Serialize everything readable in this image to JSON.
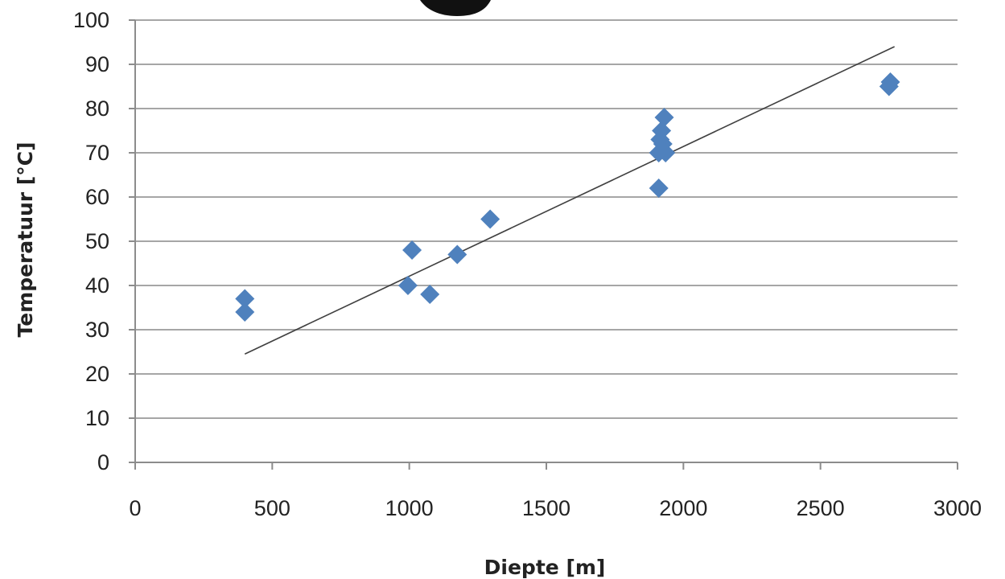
{
  "chart_data": {
    "type": "scatter",
    "title": "",
    "xlabel": "Diepte [m]",
    "ylabel": "Temperatuur [°C]",
    "xlim": [
      0,
      3000
    ],
    "ylim": [
      0,
      100
    ],
    "x_ticks": [
      0,
      500,
      1000,
      1500,
      2000,
      2500,
      3000
    ],
    "y_ticks": [
      0,
      10,
      20,
      30,
      40,
      50,
      60,
      70,
      80,
      90,
      100
    ],
    "grid": "horizontal",
    "legend": "none",
    "marker": "diamond",
    "marker_color": "#4f81bd",
    "trendline_color": "#404040",
    "series": [
      {
        "points": [
          {
            "x": 400,
            "y": 37
          },
          {
            "x": 400,
            "y": 34
          },
          {
            "x": 995,
            "y": 40
          },
          {
            "x": 1010,
            "y": 48
          },
          {
            "x": 1075,
            "y": 38
          },
          {
            "x": 1175,
            "y": 47
          },
          {
            "x": 1295,
            "y": 55
          },
          {
            "x": 1910,
            "y": 62
          },
          {
            "x": 1910,
            "y": 70
          },
          {
            "x": 1915,
            "y": 73
          },
          {
            "x": 1920,
            "y": 75
          },
          {
            "x": 1925,
            "y": 72
          },
          {
            "x": 1930,
            "y": 78
          },
          {
            "x": 1935,
            "y": 70
          },
          {
            "x": 2750,
            "y": 85
          },
          {
            "x": 2755,
            "y": 86
          }
        ]
      }
    ],
    "trendline": {
      "type": "linear",
      "points": [
        {
          "x": 400,
          "y": 24.5
        },
        {
          "x": 2770,
          "y": 94
        }
      ]
    }
  }
}
